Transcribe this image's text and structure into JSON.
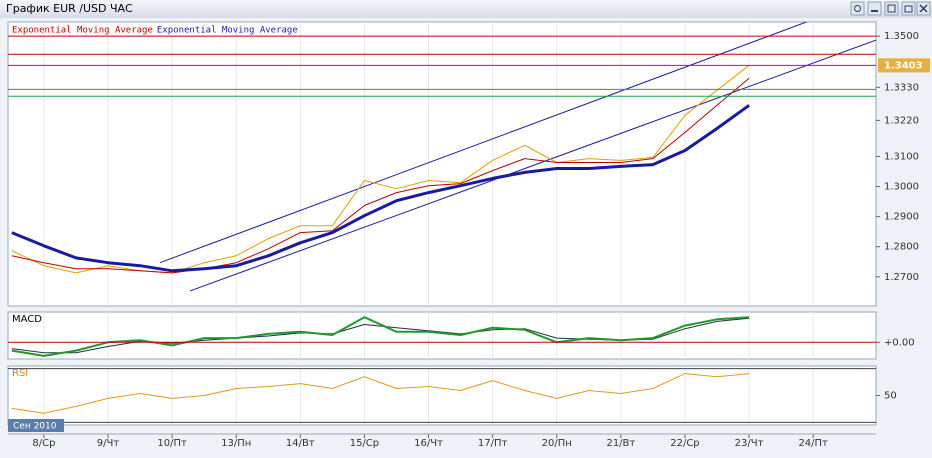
{
  "title": "График EUR /USD  ЧАС",
  "chart_data": [
    {
      "type": "line",
      "x": [
        -0.5,
        0,
        0.5,
        1,
        1.5,
        2,
        2.5,
        3,
        3.5,
        4,
        4.5,
        5,
        5.5,
        6,
        6.5,
        7,
        7.5,
        8,
        8.5,
        9,
        9.5,
        10,
        10.5,
        11
      ],
      "xlim": [
        -0.56,
        12.98
      ],
      "ylim": [
        1.2603,
        1.3547
      ],
      "yticks": [
        {
          "value": 1.35,
          "label": "1.3500"
        },
        {
          "value": 1.333,
          "label": "1.3330"
        },
        {
          "value": 1.322,
          "label": "1.3220"
        },
        {
          "value": 1.31,
          "label": "1.3100"
        },
        {
          "value": 1.3,
          "label": "1.3000"
        },
        {
          "value": 1.29,
          "label": "1.2900"
        },
        {
          "value": 1.28,
          "label": "1.2800"
        },
        {
          "value": 1.27,
          "label": "1.2700"
        }
      ],
      "series": [
        {
          "color": "#e0a000",
          "width": 1,
          "values": [
            1.2787,
            1.2737,
            1.2713,
            1.2737,
            1.272,
            1.2713,
            1.2747,
            1.277,
            1.2827,
            1.287,
            1.287,
            1.302,
            1.2993,
            1.302,
            1.3013,
            1.3087,
            1.3137,
            1.308,
            1.3093,
            1.3087,
            1.3097,
            1.3237,
            1.332,
            1.3403
          ]
        },
        {
          "name": "Exponential Moving Average",
          "color": "#c00000",
          "width": 1,
          "values": [
            1.277,
            1.2747,
            1.2727,
            1.2727,
            1.272,
            1.2713,
            1.2727,
            1.2747,
            1.2793,
            1.2847,
            1.2853,
            1.2937,
            1.298,
            1.3003,
            1.301,
            1.3053,
            1.3093,
            1.308,
            1.308,
            1.308,
            1.3093,
            1.318,
            1.327,
            1.336
          ]
        },
        {
          "name": "Exponential Moving Average",
          "color": "#1a1aa0",
          "width": 3,
          "values": [
            1.2847,
            1.2803,
            1.2763,
            1.2747,
            1.2737,
            1.272,
            1.2727,
            1.2737,
            1.277,
            1.2813,
            1.2847,
            1.2903,
            1.2953,
            1.298,
            1.3003,
            1.3027,
            1.3047,
            1.306,
            1.306,
            1.3067,
            1.3073,
            1.312,
            1.3193,
            1.327
          ]
        }
      ],
      "trendlines": [
        {
          "color": "#1a1aa0",
          "x": [
            1.81,
            11.97
          ],
          "y": [
            1.2747,
            1.3553
          ]
        },
        {
          "color": "#1a1aa0",
          "x": [
            2.28,
            12.98
          ],
          "y": [
            1.2653,
            1.3487
          ]
        }
      ],
      "hlines": [
        {
          "value": 1.35,
          "color": "#c00000"
        },
        {
          "value": 1.344,
          "color": "#c00000"
        },
        {
          "value": 1.3403,
          "color": "#c000c0",
          "label": "1.3403"
        },
        {
          "value": 1.3323,
          "color": "#20a040"
        },
        {
          "value": 1.33,
          "color": "#20a040"
        }
      ]
    },
    {
      "type": "line",
      "title": "MACD",
      "x": [
        -0.5,
        0,
        0.5,
        1,
        1.5,
        2,
        2.5,
        3,
        3.5,
        4,
        4.5,
        5,
        5.5,
        6,
        6.5,
        7,
        7.5,
        8,
        8.5,
        9,
        9.5,
        10,
        10.5,
        11
      ],
      "xlim": [
        -0.56,
        12.98
      ],
      "ylim": [
        -0.0032,
        0.0058
      ],
      "yticks": [
        {
          "value": 0,
          "label": "+0.00"
        }
      ],
      "series": [
        {
          "color": "#203040",
          "width": 1,
          "values": [
            -0.0012,
            -0.002,
            -0.002,
            -0.0008,
            0.0002,
            -0.0002,
            0.0004,
            0.0008,
            0.0012,
            0.0018,
            0.0016,
            0.0034,
            0.0028,
            0.0022,
            0.0016,
            0.0024,
            0.0026,
            0.0008,
            0.0006,
            0.0004,
            0.0006,
            0.0026,
            0.004,
            0.0046
          ]
        },
        {
          "color": "#1f9a2a",
          "width": 2,
          "values": [
            -0.0016,
            -0.0026,
            -0.0016,
            0,
            0.0004,
            -0.0006,
            0.0008,
            0.0008,
            0.0016,
            0.002,
            0.0014,
            0.0048,
            0.002,
            0.002,
            0.0014,
            0.0028,
            0.0024,
            0,
            0.0008,
            0.0004,
            0.0008,
            0.0032,
            0.0044,
            0.0048
          ]
        }
      ],
      "hlines": [
        {
          "value": 0,
          "color": "#c00000"
        }
      ]
    },
    {
      "type": "line",
      "title": "RSI",
      "x": [
        -0.5,
        0,
        0.5,
        1,
        1.5,
        2,
        2.5,
        3,
        3.5,
        4,
        4.5,
        5,
        5.5,
        6,
        6.5,
        7,
        7.5,
        8,
        8.5,
        9,
        9.5,
        10,
        10.5,
        11
      ],
      "xlim": [
        -0.56,
        12.98
      ],
      "ylim": [
        28,
        72
      ],
      "yticks": [
        50
      ],
      "xticks": [
        {
          "value": 0,
          "label": "8/Ср"
        },
        {
          "value": 1,
          "label": "9/Чт"
        },
        {
          "value": 2,
          "label": "10/Пт"
        },
        {
          "value": 3,
          "label": "13/Пн"
        },
        {
          "value": 4,
          "label": "14/Вт"
        },
        {
          "value": 5,
          "label": "15/Ср"
        },
        {
          "value": 6,
          "label": "16/Чт"
        },
        {
          "value": 7,
          "label": "17/Пт"
        },
        {
          "value": 8,
          "label": "20/Пн"
        },
        {
          "value": 9,
          "label": "21/Вт"
        },
        {
          "value": 10,
          "label": "22/Ср"
        },
        {
          "value": 11,
          "label": "23/Чт"
        },
        {
          "value": 12,
          "label": "24/Пт"
        }
      ],
      "period": "Сен 2010",
      "series": [
        {
          "color": "#e09a20",
          "width": 1,
          "values": [
            40.4,
            36.7,
            41.9,
            47.8,
            51.5,
            47.8,
            50,
            55.2,
            56.7,
            58.9,
            55.2,
            64,
            55.2,
            56.7,
            53.7,
            61.1,
            53.7,
            47.8,
            53.7,
            51.5,
            55.2,
            66.3,
            64,
            66.3
          ]
        }
      ],
      "hlines": [
        {
          "value": 70,
          "color": "#404040"
        },
        {
          "value": 30,
          "color": "#404040"
        }
      ]
    }
  ]
}
